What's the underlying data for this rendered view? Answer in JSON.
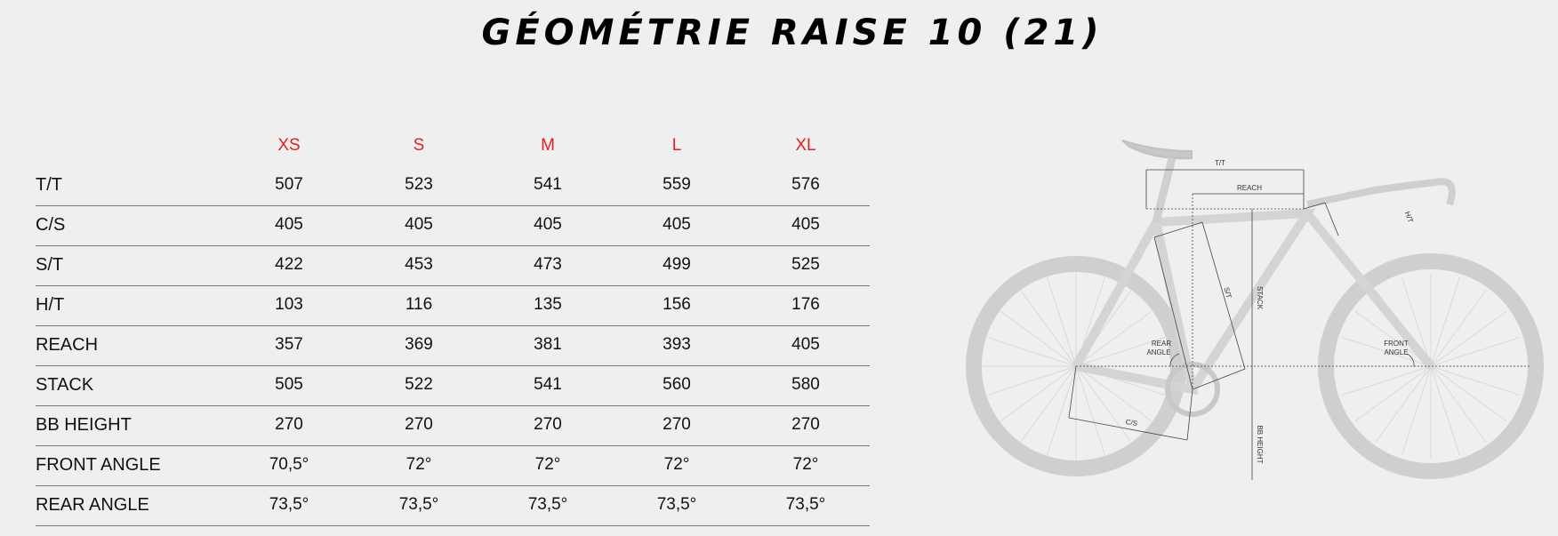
{
  "title": "GÉOMÉTRIE RAISE 10 (21)",
  "colors": {
    "size_header": "#e02020",
    "background": "#efefef"
  },
  "table": {
    "sizes": [
      "XS",
      "S",
      "M",
      "L",
      "XL"
    ],
    "rows": [
      {
        "label": "T/T",
        "values": [
          "507",
          "523",
          "541",
          "559",
          "576"
        ]
      },
      {
        "label": "C/S",
        "values": [
          "405",
          "405",
          "405",
          "405",
          "405"
        ]
      },
      {
        "label": "S/T",
        "values": [
          "422",
          "453",
          "473",
          "499",
          "525"
        ]
      },
      {
        "label": "H/T",
        "values": [
          "103",
          "116",
          "135",
          "156",
          "176"
        ]
      },
      {
        "label": "REACH",
        "values": [
          "357",
          "369",
          "381",
          "393",
          "405"
        ]
      },
      {
        "label": "STACK",
        "values": [
          "505",
          "522",
          "541",
          "560",
          "580"
        ]
      },
      {
        "label": "BB HEIGHT",
        "values": [
          "270",
          "270",
          "270",
          "270",
          "270"
        ]
      },
      {
        "label": "FRONT ANGLE",
        "values": [
          "70,5°",
          "72°",
          "72°",
          "72°",
          "72°"
        ]
      },
      {
        "label": "REAR ANGLE",
        "values": [
          "73,5°",
          "73,5°",
          "73,5°",
          "73,5°",
          "73,5°"
        ]
      }
    ]
  },
  "diagram": {
    "labels": {
      "tt": "T/T",
      "reach": "REACH",
      "ht": "H/T",
      "st": "S/T",
      "stack": "STACK",
      "rear_angle_1": "REAR",
      "rear_angle_2": "ANGLE",
      "front_angle_1": "FRONT",
      "front_angle_2": "ANGLE",
      "cs": "C/S",
      "bb_height": "BB HEIGHT"
    }
  }
}
